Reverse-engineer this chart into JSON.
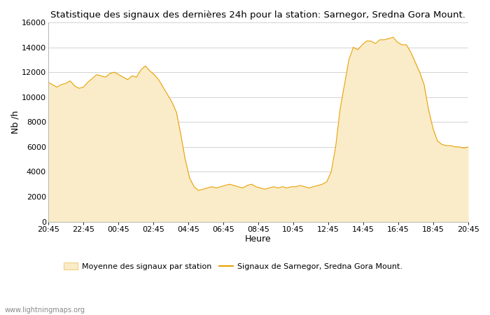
{
  "title": "Statistique des signaux des dernières 24h pour la station: Sarnegor, Sredna Gora Mount.",
  "xlabel": "Heure",
  "ylabel": "Nb /h",
  "ylim": [
    0,
    16000
  ],
  "yticks": [
    0,
    2000,
    4000,
    6000,
    8000,
    10000,
    12000,
    14000,
    16000
  ],
  "xtick_labels": [
    "20:45",
    "22:45",
    "00:45",
    "02:45",
    "04:45",
    "06:45",
    "08:45",
    "10:45",
    "12:45",
    "14:45",
    "16:45",
    "18:45",
    "20:45"
  ],
  "fill_color": "#faecc8",
  "fill_edge_color": "#f0d080",
  "line_color": "#e8a000",
  "background_color": "#ffffff",
  "grid_color": "#cccccc",
  "watermark": "www.lightningmaps.org",
  "legend_fill_label": "Moyenne des signaux par station",
  "legend_line_label": "Signaux de Sarnegor, Sredna Gora Mount.",
  "x_values": [
    0,
    1,
    2,
    3,
    4,
    5,
    6,
    7,
    8,
    9,
    10,
    11,
    12,
    13,
    14,
    15,
    16,
    17,
    18,
    19,
    20,
    21,
    22,
    23,
    24,
    25,
    26,
    27,
    28,
    29,
    30,
    31,
    32,
    33,
    34,
    35,
    36,
    37,
    38,
    39,
    40,
    41,
    42,
    43,
    44,
    45,
    46,
    47,
    48,
    49,
    50,
    51,
    52,
    53,
    54,
    55,
    56,
    57,
    58,
    59,
    60,
    61,
    62,
    63,
    64,
    65,
    66,
    67,
    68,
    69,
    70,
    71,
    72,
    73,
    74,
    75,
    76,
    77,
    78,
    79,
    80,
    81,
    82,
    83,
    84,
    85,
    86,
    87,
    88,
    89,
    90,
    91,
    92,
    93,
    94,
    95
  ],
  "y_fill": [
    11200,
    11000,
    10800,
    11000,
    11100,
    11300,
    10900,
    10700,
    10800,
    11200,
    11500,
    11800,
    11700,
    11600,
    11900,
    12000,
    11800,
    11600,
    11400,
    11700,
    11600,
    12200,
    12500,
    12100,
    11800,
    11400,
    10800,
    10200,
    9600,
    8800,
    7000,
    5000,
    3500,
    2800,
    2500,
    2600,
    2700,
    2800,
    2700,
    2800,
    2900,
    3000,
    2900,
    2800,
    2700,
    2900,
    3000,
    2800,
    2700,
    2600,
    2700,
    2800,
    2700,
    2800,
    2700,
    2800,
    2800,
    2900,
    2800,
    2700,
    2800,
    2900,
    3000,
    3200,
    4000,
    6000,
    9000,
    11000,
    13000,
    14000,
    13800,
    14200,
    14500,
    14500,
    14300,
    14600,
    14600,
    14700,
    14800,
    14400,
    14200,
    14200,
    13600,
    12800,
    12000,
    11000,
    9000,
    7500,
    6500,
    6200,
    6100,
    6100,
    6000,
    6000,
    5900,
    6000
  ],
  "y_line": [
    11200,
    11000,
    10800,
    11000,
    11100,
    11300,
    10900,
    10700,
    10800,
    11200,
    11500,
    11800,
    11700,
    11600,
    11900,
    12000,
    11800,
    11600,
    11400,
    11700,
    11600,
    12200,
    12500,
    12100,
    11800,
    11400,
    10800,
    10200,
    9600,
    8800,
    7000,
    5000,
    3500,
    2800,
    2500,
    2600,
    2700,
    2800,
    2700,
    2800,
    2900,
    3000,
    2900,
    2800,
    2700,
    2900,
    3000,
    2800,
    2700,
    2600,
    2700,
    2800,
    2700,
    2800,
    2700,
    2800,
    2800,
    2900,
    2800,
    2700,
    2800,
    2900,
    3000,
    3200,
    4000,
    6000,
    9000,
    11000,
    13000,
    14000,
    13800,
    14200,
    14500,
    14500,
    14300,
    14600,
    14600,
    14700,
    14800,
    14400,
    14200,
    14200,
    13600,
    12800,
    12000,
    11000,
    9000,
    7500,
    6500,
    6200,
    6100,
    6100,
    6000,
    6000,
    5900,
    6000
  ],
  "title_fontsize": 9.5,
  "tick_fontsize": 8,
  "label_fontsize": 9
}
